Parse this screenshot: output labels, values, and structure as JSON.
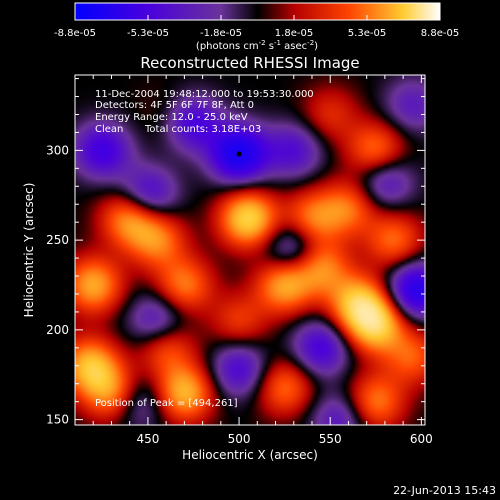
{
  "chart_data": {
    "type": "heatmap",
    "title": "Reconstructed RHESSI Image",
    "xlabel": "Heliocentric X (arcsec)",
    "ylabel": "Heliocentric Y (arcsec)",
    "xlim": [
      410,
      602
    ],
    "ylim": [
      147,
      342
    ],
    "x_ticks": [
      450,
      500,
      550,
      600
    ],
    "y_ticks": [
      150,
      200,
      250,
      300
    ],
    "colorbar": {
      "ticks": [
        "-8.8e-05",
        "-5.3e-05",
        "-1.8e-05",
        "1.8e-05",
        "5.3e-05",
        "8.8e-05"
      ],
      "range": [
        -8.8e-05,
        8.8e-05
      ],
      "unit_pre": "(photons cm",
      "unit_exp1": "-2",
      "unit_mid": " s",
      "unit_exp2": "-1",
      "unit_mid2": " asec",
      "unit_exp3": "-2",
      "unit_post": ")"
    },
    "annotations": {
      "time_range": "11-Dec-2004 19:48:12.000 to 19:53:30.000",
      "detectors": "Detectors: 4F 5F 6F 7F 8F, Att 0",
      "energy": "Energy Range: 12.0 - 25.0 keV",
      "clean": "Clean",
      "total_counts": "Total counts: 3.18E+03",
      "peak": "Position of Peak = [494,261]"
    },
    "marked_point": [
      500,
      298
    ],
    "sources": [
      {
        "x": 440,
        "y": 262,
        "v": 0.65
      },
      {
        "x": 455,
        "y": 250,
        "v": 0.55
      },
      {
        "x": 420,
        "y": 225,
        "v": 0.7
      },
      {
        "x": 470,
        "y": 225,
        "v": 0.55
      },
      {
        "x": 505,
        "y": 262,
        "v": 0.9
      },
      {
        "x": 540,
        "y": 262,
        "v": 0.55
      },
      {
        "x": 560,
        "y": 268,
        "v": 0.5
      },
      {
        "x": 575,
        "y": 300,
        "v": 0.55
      },
      {
        "x": 585,
        "y": 250,
        "v": 0.5
      },
      {
        "x": 545,
        "y": 235,
        "v": 0.6
      },
      {
        "x": 525,
        "y": 225,
        "v": 0.7
      },
      {
        "x": 565,
        "y": 215,
        "v": 0.75
      },
      {
        "x": 575,
        "y": 203,
        "v": 0.85
      },
      {
        "x": 500,
        "y": 205,
        "v": 0.35
      },
      {
        "x": 418,
        "y": 180,
        "v": 0.75
      },
      {
        "x": 430,
        "y": 165,
        "v": 0.6
      },
      {
        "x": 470,
        "y": 165,
        "v": 0.75
      },
      {
        "x": 460,
        "y": 190,
        "v": 0.45
      },
      {
        "x": 525,
        "y": 168,
        "v": 0.5
      },
      {
        "x": 575,
        "y": 160,
        "v": 0.55
      },
      {
        "x": 595,
        "y": 185,
        "v": 0.45
      },
      {
        "x": 550,
        "y": 320,
        "v": 0.3
      },
      {
        "x": 460,
        "y": 320,
        "v": 0.1
      },
      {
        "x": 500,
        "y": 298,
        "v": -0.95
      },
      {
        "x": 475,
        "y": 315,
        "v": -0.55
      },
      {
        "x": 425,
        "y": 300,
        "v": -0.6
      },
      {
        "x": 450,
        "y": 275,
        "v": -0.55
      },
      {
        "x": 530,
        "y": 300,
        "v": -0.45
      },
      {
        "x": 530,
        "y": 245,
        "v": -0.5
      },
      {
        "x": 597,
        "y": 222,
        "v": -0.8
      },
      {
        "x": 580,
        "y": 283,
        "v": -0.45
      },
      {
        "x": 455,
        "y": 205,
        "v": -0.45
      },
      {
        "x": 545,
        "y": 190,
        "v": -0.55
      },
      {
        "x": 500,
        "y": 178,
        "v": -0.5
      },
      {
        "x": 445,
        "y": 160,
        "v": -0.35
      },
      {
        "x": 555,
        "y": 150,
        "v": -0.4
      },
      {
        "x": 595,
        "y": 325,
        "v": -0.35
      }
    ]
  },
  "footer": {
    "date": "22-Jun-2013 15:43"
  }
}
